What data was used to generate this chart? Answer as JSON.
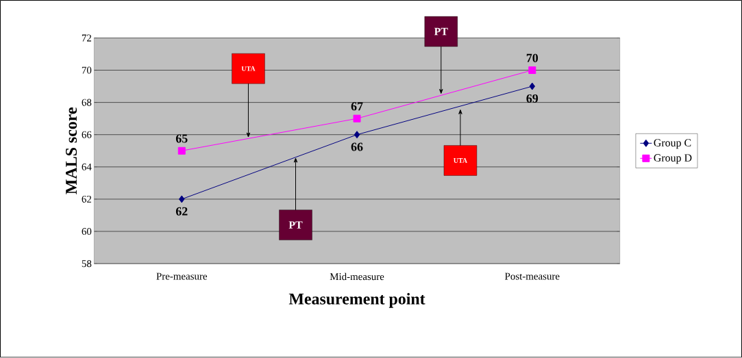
{
  "chart_data": {
    "type": "line",
    "xlabel": "Measurement point",
    "ylabel": "MALS score",
    "categories": [
      "Pre-measure",
      "Mid-measure",
      "Post-measure"
    ],
    "series": [
      {
        "name": "Group C",
        "color": "#000080",
        "marker": "diamond",
        "values": [
          62,
          66,
          69
        ]
      },
      {
        "name": "Group D",
        "color": "#ff00ff",
        "marker": "square",
        "values": [
          65,
          67,
          70
        ]
      }
    ],
    "ylim": [
      58,
      72
    ],
    "yticks": [
      58,
      60,
      62,
      64,
      66,
      68,
      70,
      72
    ],
    "grid": "y",
    "legend": "right",
    "data_labels": true,
    "annotations": [
      {
        "text": "UTA",
        "y": 65.8
      },
      {
        "text": "PT",
        "y": 64.6
      },
      {
        "text": "PT",
        "y": 68.5
      },
      {
        "text": "UTA",
        "y": 67.6
      }
    ]
  }
}
